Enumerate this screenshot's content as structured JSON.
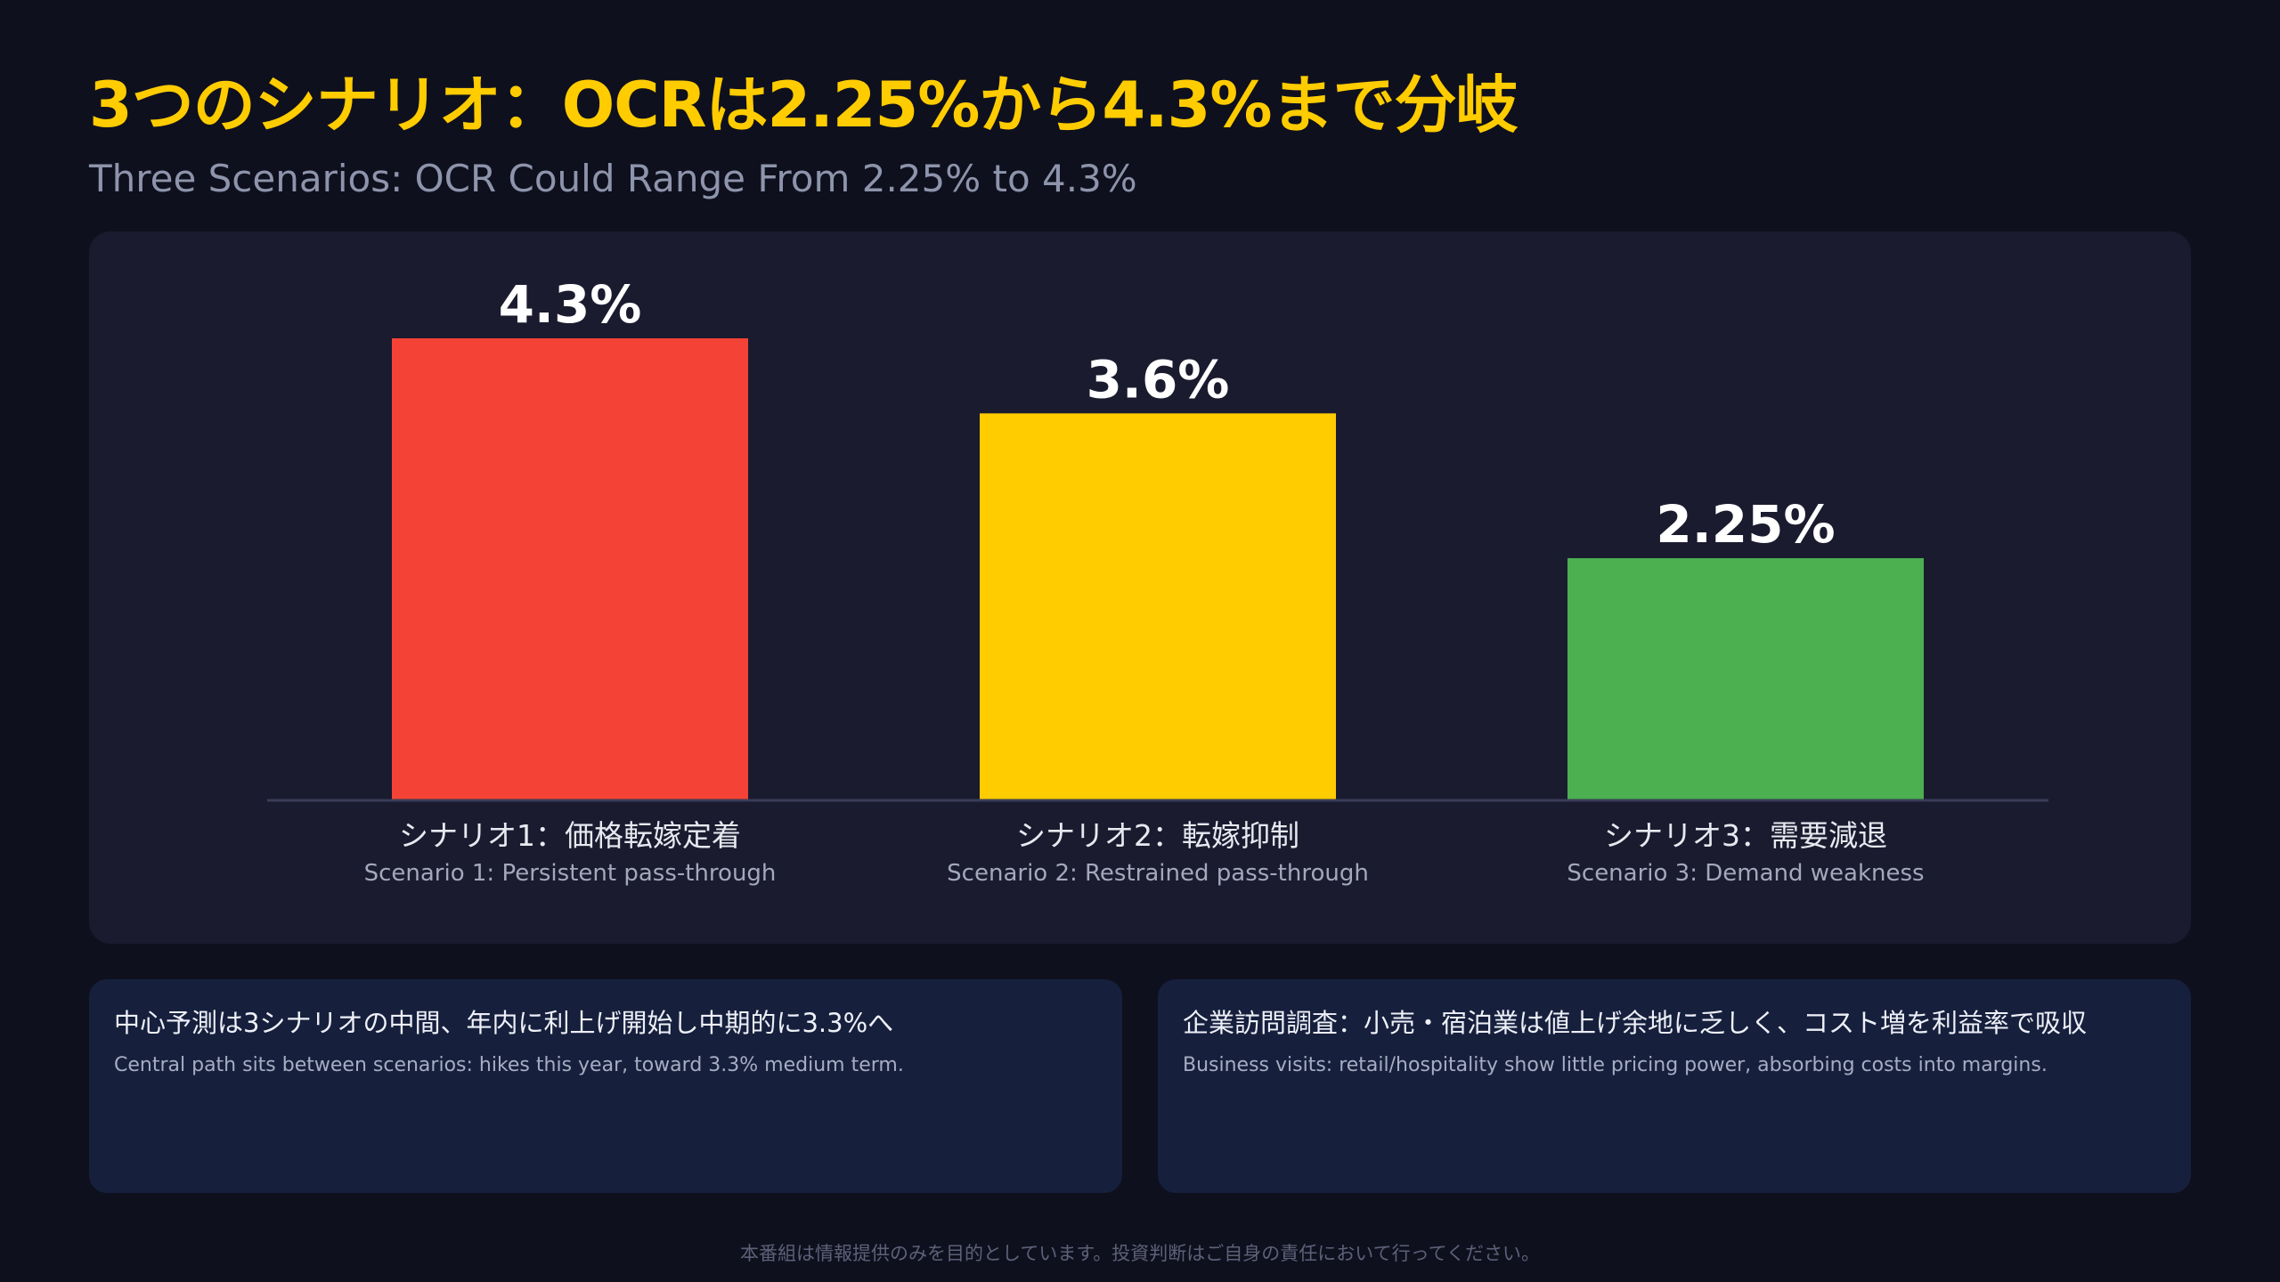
{
  "header": {
    "title": "3つのシナリオ：OCRは2.25%から4.3%まで分岐",
    "subtitle": "Three Scenarios: OCR Could Range From 2.25% to 4.3%"
  },
  "chart_data": {
    "type": "bar",
    "categories": [
      "シナリオ1：価格転嫁定着",
      "シナリオ2：転嫁抑制",
      "シナリオ3：需要減退"
    ],
    "category_subtitles": [
      "Scenario 1: Persistent pass-through",
      "Scenario 2: Restrained pass-through",
      "Scenario 3: Demand weakness"
    ],
    "values": [
      4.3,
      3.6,
      2.25
    ],
    "value_labels": [
      "4.3%",
      "3.6%",
      "2.25%"
    ],
    "colors": [
      "#f44336",
      "#ffcc00",
      "#4caf50"
    ],
    "ylim": [
      0,
      4.3
    ],
    "grid": false,
    "title": "",
    "xlabel": "",
    "ylabel": ""
  },
  "cards": [
    {
      "title": "中心予測は3シナリオの中間、年内に利上げ開始し中期的に3.3%へ",
      "text": "Central path sits between scenarios: hikes this year, toward 3.3% medium term."
    },
    {
      "title": "企業訪問調査：小売・宿泊業は値上げ余地に乏しく、コスト増を利益率で吸収",
      "text": "Business visits: retail/hospitality show little pricing power, absorbing costs into margins."
    }
  ],
  "footer": {
    "disclaimer": "本番組は情報提供のみを目的としています。投資判断はご自身の責任において行ってください。"
  }
}
